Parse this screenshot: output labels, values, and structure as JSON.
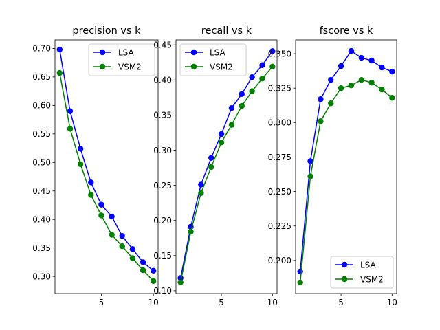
{
  "chart_data": [
    {
      "type": "line",
      "title": "precision vs k",
      "x": [
        1,
        2,
        3,
        4,
        5,
        6,
        7,
        8,
        9,
        10
      ],
      "xlim": [
        0.55,
        10.45
      ],
      "ylim": [
        0.27,
        0.715
      ],
      "xticks": [
        5,
        10
      ],
      "yticks": [
        0.3,
        0.35,
        0.4,
        0.45,
        0.5,
        0.55,
        0.6,
        0.65,
        0.7
      ],
      "ytick_labels": [
        "0.30",
        "0.35",
        "0.40",
        "0.45",
        "0.50",
        "0.55",
        "0.60",
        "0.65",
        "0.70"
      ],
      "legend": "upper right",
      "series": [
        {
          "name": "LSA",
          "color": "#0000ff",
          "values": [
            0.698,
            0.59,
            0.524,
            0.465,
            0.426,
            0.405,
            0.371,
            0.348,
            0.325,
            0.31
          ]
        },
        {
          "name": "VSM2",
          "color": "#008000",
          "values": [
            0.657,
            0.559,
            0.497,
            0.443,
            0.407,
            0.373,
            0.353,
            0.332,
            0.311,
            0.292
          ]
        }
      ]
    },
    {
      "type": "line",
      "title": "recall vs k",
      "x": [
        1,
        2,
        3,
        4,
        5,
        6,
        7,
        8,
        9,
        10
      ],
      "xlim": [
        0.55,
        10.45
      ],
      "ylim": [
        0.096,
        0.457
      ],
      "xticks": [
        5,
        10
      ],
      "yticks": [
        0.1,
        0.15,
        0.2,
        0.25,
        0.3,
        0.35,
        0.4,
        0.45
      ],
      "ytick_labels": [
        "0.10",
        "0.15",
        "0.20",
        "0.25",
        "0.30",
        "0.35",
        "0.40",
        "0.45"
      ],
      "legend": "upper left",
      "series": [
        {
          "name": "LSA",
          "color": "#0000ff",
          "values": [
            0.118,
            0.191,
            0.251,
            0.289,
            0.323,
            0.36,
            0.38,
            0.404,
            0.421,
            0.441
          ]
        },
        {
          "name": "VSM2",
          "color": "#008000",
          "values": [
            0.112,
            0.184,
            0.239,
            0.276,
            0.311,
            0.336,
            0.363,
            0.384,
            0.402,
            0.419
          ]
        }
      ]
    },
    {
      "type": "line",
      "title": "fscore vs k",
      "x": [
        1,
        2,
        3,
        4,
        5,
        6,
        7,
        8,
        9,
        10
      ],
      "xlim": [
        0.55,
        10.45
      ],
      "ylim": [
        0.176,
        0.36
      ],
      "xticks": [
        5,
        10
      ],
      "yticks": [
        0.2,
        0.225,
        0.25,
        0.275,
        0.3,
        0.325,
        0.35
      ],
      "ytick_labels": [
        "0.200",
        "0.225",
        "0.250",
        "0.275",
        "0.300",
        "0.325",
        "0.350"
      ],
      "legend": "lower right",
      "series": [
        {
          "name": "LSA",
          "color": "#0000ff",
          "values": [
            0.192,
            0.272,
            0.317,
            0.331,
            0.341,
            0.352,
            0.347,
            0.345,
            0.34,
            0.337
          ]
        },
        {
          "name": "VSM2",
          "color": "#008000",
          "values": [
            0.184,
            0.261,
            0.301,
            0.314,
            0.325,
            0.327,
            0.331,
            0.329,
            0.324,
            0.318
          ]
        }
      ]
    }
  ]
}
